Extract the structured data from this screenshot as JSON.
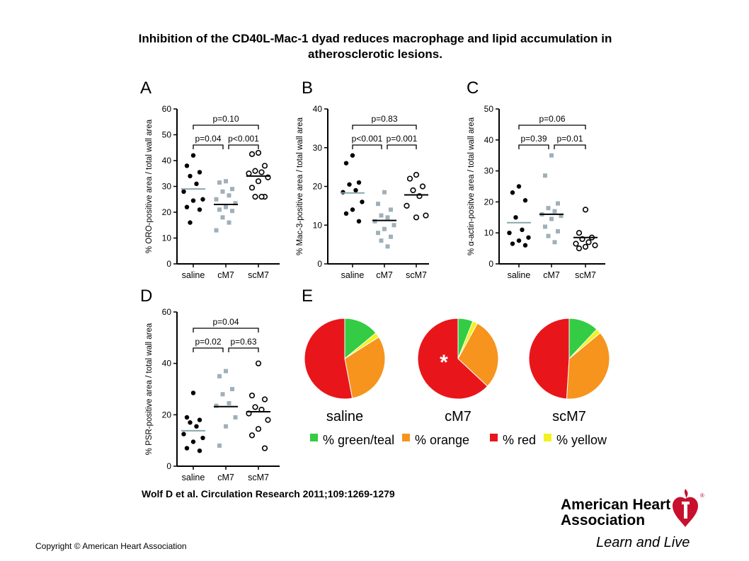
{
  "title_line1": "Inhibition of the CD40L-Mac-1 dyad reduces macrophage and lipid accumulation in",
  "title_line2": "atherosclerotic lesions.",
  "citation": "Wolf D et al. Circulation Research 2011;109:1269-1279",
  "copyright": "Copyright © American Heart Association",
  "logo": {
    "line1": "American Heart",
    "line2": "Association",
    "tagline": "Learn and Live",
    "color": "#c8102e"
  },
  "chart_data": [
    {
      "panel": "A",
      "type": "scatter",
      "ylabel": "% ORO-positive area / total wall area",
      "ylim": [
        0,
        60
      ],
      "yticks": [
        0,
        10,
        20,
        30,
        40,
        50,
        60
      ],
      "categories": [
        "saline",
        "cM7",
        "scM7"
      ],
      "groups": [
        {
          "name": "saline",
          "marker": "filled-circle",
          "color": "#000000",
          "mean_color": "#8aa6ad",
          "mean": 29,
          "values": [
            42,
            38,
            35.5,
            34,
            31,
            28,
            25,
            24.5,
            22,
            21,
            16
          ]
        },
        {
          "name": "cM7",
          "marker": "square",
          "color": "#9fb0ba",
          "mean_color": "#000000",
          "mean": 23,
          "values": [
            32,
            31.5,
            29,
            28,
            26.5,
            25,
            23.5,
            22,
            21,
            20.5,
            18,
            16,
            13
          ]
        },
        {
          "name": "scM7",
          "marker": "open-circle",
          "color": "#000000",
          "mean_color": "#000000",
          "mean": 34,
          "values": [
            43,
            42.5,
            38,
            36,
            35.5,
            35,
            33.5,
            32,
            29.5,
            26,
            26,
            26
          ]
        }
      ],
      "comparisons": [
        {
          "label": "p=0.10",
          "from": 0,
          "to": 2,
          "level": 1
        },
        {
          "label": "p=0.04",
          "from": 0,
          "to": 1,
          "level": 0
        },
        {
          "label": "p<0.001",
          "from": 1,
          "to": 2,
          "level": 0
        }
      ]
    },
    {
      "panel": "B",
      "type": "scatter",
      "ylabel": "% Mac-3-positive area / total wall area",
      "ylim": [
        0,
        40
      ],
      "yticks": [
        0,
        10,
        20,
        30,
        40
      ],
      "categories": [
        "saline",
        "cM7",
        "scM7"
      ],
      "groups": [
        {
          "name": "saline",
          "marker": "filled-circle",
          "color": "#000000",
          "mean_color": "#8aa6ad",
          "mean": 18.3,
          "values": [
            28,
            26,
            21,
            20.5,
            19,
            18.5,
            16,
            14,
            13,
            11
          ]
        },
        {
          "name": "cM7",
          "marker": "square",
          "color": "#9fb0ba",
          "mean_color": "#000000",
          "mean": 11.2,
          "values": [
            18.5,
            15.5,
            14,
            12.5,
            12,
            11,
            10,
            9,
            8,
            7,
            6,
            4.5
          ]
        },
        {
          "name": "scM7",
          "marker": "open-circle",
          "color": "#000000",
          "mean_color": "#000000",
          "mean": 17.8,
          "values": [
            23,
            22,
            20,
            19,
            17.5,
            15,
            12.5,
            12
          ]
        }
      ],
      "comparisons": [
        {
          "label": "p=0.83",
          "from": 0,
          "to": 2,
          "level": 1
        },
        {
          "label": "p<0.001",
          "from": 0,
          "to": 1,
          "level": 0
        },
        {
          "label": "p=0.001",
          "from": 1,
          "to": 2,
          "level": 0
        }
      ]
    },
    {
      "panel": "C",
      "type": "scatter",
      "ylabel": "% α-actin-positve area / total wall area",
      "ylim": [
        0,
        50
      ],
      "yticks": [
        0,
        10,
        20,
        30,
        40,
        50
      ],
      "categories": [
        "saline",
        "cM7",
        "scM7"
      ],
      "groups": [
        {
          "name": "saline",
          "marker": "filled-circle",
          "color": "#000000",
          "mean_color": "#8aa6ad",
          "mean": 13.3,
          "values": [
            25,
            23,
            20.5,
            15,
            11,
            10,
            8.5,
            7.5,
            6.5,
            6
          ]
        },
        {
          "name": "cM7",
          "marker": "square",
          "color": "#9fb0ba",
          "mean_color": "#000000",
          "mean": 16,
          "values": [
            35,
            28.5,
            19.5,
            18,
            17,
            16,
            15.5,
            14.5,
            12,
            10.5,
            9,
            7
          ]
        },
        {
          "name": "scM7",
          "marker": "open-circle",
          "color": "#000000",
          "mean_color": "#000000",
          "mean": 8.5,
          "values": [
            17.5,
            10,
            8.5,
            8,
            7,
            6.5,
            6,
            5.5,
            5
          ]
        }
      ],
      "comparisons": [
        {
          "label": "p=0.06",
          "from": 0,
          "to": 2,
          "level": 1
        },
        {
          "label": "p=0.39",
          "from": 0,
          "to": 1,
          "level": 0
        },
        {
          "label": "p=0.01",
          "from": 1,
          "to": 2,
          "level": 0
        }
      ]
    },
    {
      "panel": "D",
      "type": "scatter",
      "ylabel": "% PSR-positive area / total wall area",
      "ylim": [
        0,
        60
      ],
      "yticks": [
        0,
        20,
        40,
        60
      ],
      "categories": [
        "saline",
        "cM7",
        "scM7"
      ],
      "groups": [
        {
          "name": "saline",
          "marker": "filled-circle",
          "color": "#000000",
          "mean_color": "#8aa6ad",
          "mean": 13.8,
          "values": [
            28.5,
            19,
            18,
            17,
            15.5,
            12.5,
            11,
            9.5,
            7,
            6
          ]
        },
        {
          "name": "cM7",
          "marker": "square",
          "color": "#9fb0ba",
          "mean_color": "#000000",
          "mean": 23.2,
          "values": [
            37,
            35,
            30,
            28,
            24.5,
            23.5,
            19,
            15.5,
            8
          ]
        },
        {
          "name": "scM7",
          "marker": "open-circle",
          "color": "#000000",
          "mean_color": "#000000",
          "mean": 21.2,
          "values": [
            40,
            27.5,
            26,
            23,
            22,
            20.5,
            18,
            14.5,
            12,
            7
          ]
        }
      ],
      "comparisons": [
        {
          "label": "p=0.04",
          "from": 0,
          "to": 2,
          "level": 1
        },
        {
          "label": "p=0.02",
          "from": 0,
          "to": 1,
          "level": 0
        },
        {
          "label": "p=0.63",
          "from": 1,
          "to": 2,
          "level": 0
        }
      ]
    },
    {
      "panel": "E",
      "type": "pie",
      "legend": [
        {
          "label": "% green/teal",
          "color": "#33cc44"
        },
        {
          "label": "% orange",
          "color": "#f7941d"
        },
        {
          "label": "% red",
          "color": "#e8161b"
        },
        {
          "label": "% yellow",
          "color": "#f2f21e"
        }
      ],
      "pies": [
        {
          "label": "saline",
          "annotation": "",
          "slices": [
            {
              "name": "% green/teal",
              "value": 14
            },
            {
              "name": "% yellow",
              "value": 2
            },
            {
              "name": "% orange",
              "value": 31
            },
            {
              "name": "% red",
              "value": 53
            }
          ]
        },
        {
          "label": "cM7",
          "annotation": "*",
          "slices": [
            {
              "name": "% green/teal",
              "value": 6
            },
            {
              "name": "% yellow",
              "value": 2
            },
            {
              "name": "% orange",
              "value": 29
            },
            {
              "name": "% red",
              "value": 63
            }
          ]
        },
        {
          "label": "scM7",
          "annotation": "",
          "slices": [
            {
              "name": "% green/teal",
              "value": 12
            },
            {
              "name": "% yellow",
              "value": 2
            },
            {
              "name": "% orange",
              "value": 37
            },
            {
              "name": "% red",
              "value": 49
            }
          ]
        }
      ]
    }
  ]
}
